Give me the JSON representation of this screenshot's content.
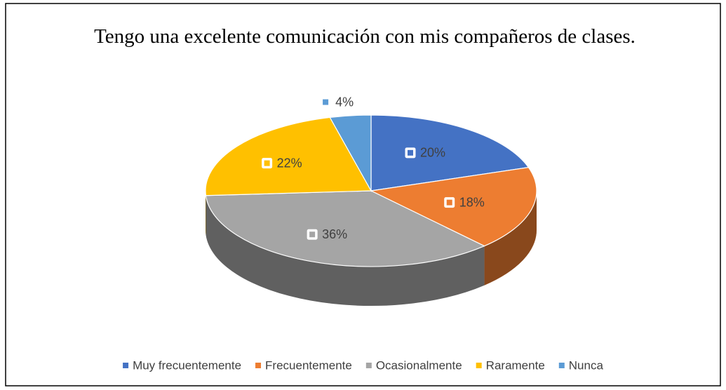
{
  "chart_data": {
    "type": "pie3d",
    "title": "Tengo una excelente comunicación con mis compañeros de clases.",
    "categories": [
      "Muy frecuentemente",
      "Frecuentemente",
      "Ocasionalmente",
      "Raramente",
      "Nunca"
    ],
    "values": [
      20,
      18,
      36,
      22,
      4
    ],
    "value_labels": [
      "20%",
      "18%",
      "36%",
      "22%",
      "4%"
    ],
    "colors": [
      "#4472c4",
      "#ed7d31",
      "#a5a5a5",
      "#ffc000",
      "#5b9bd5"
    ],
    "legend": "bottom"
  }
}
